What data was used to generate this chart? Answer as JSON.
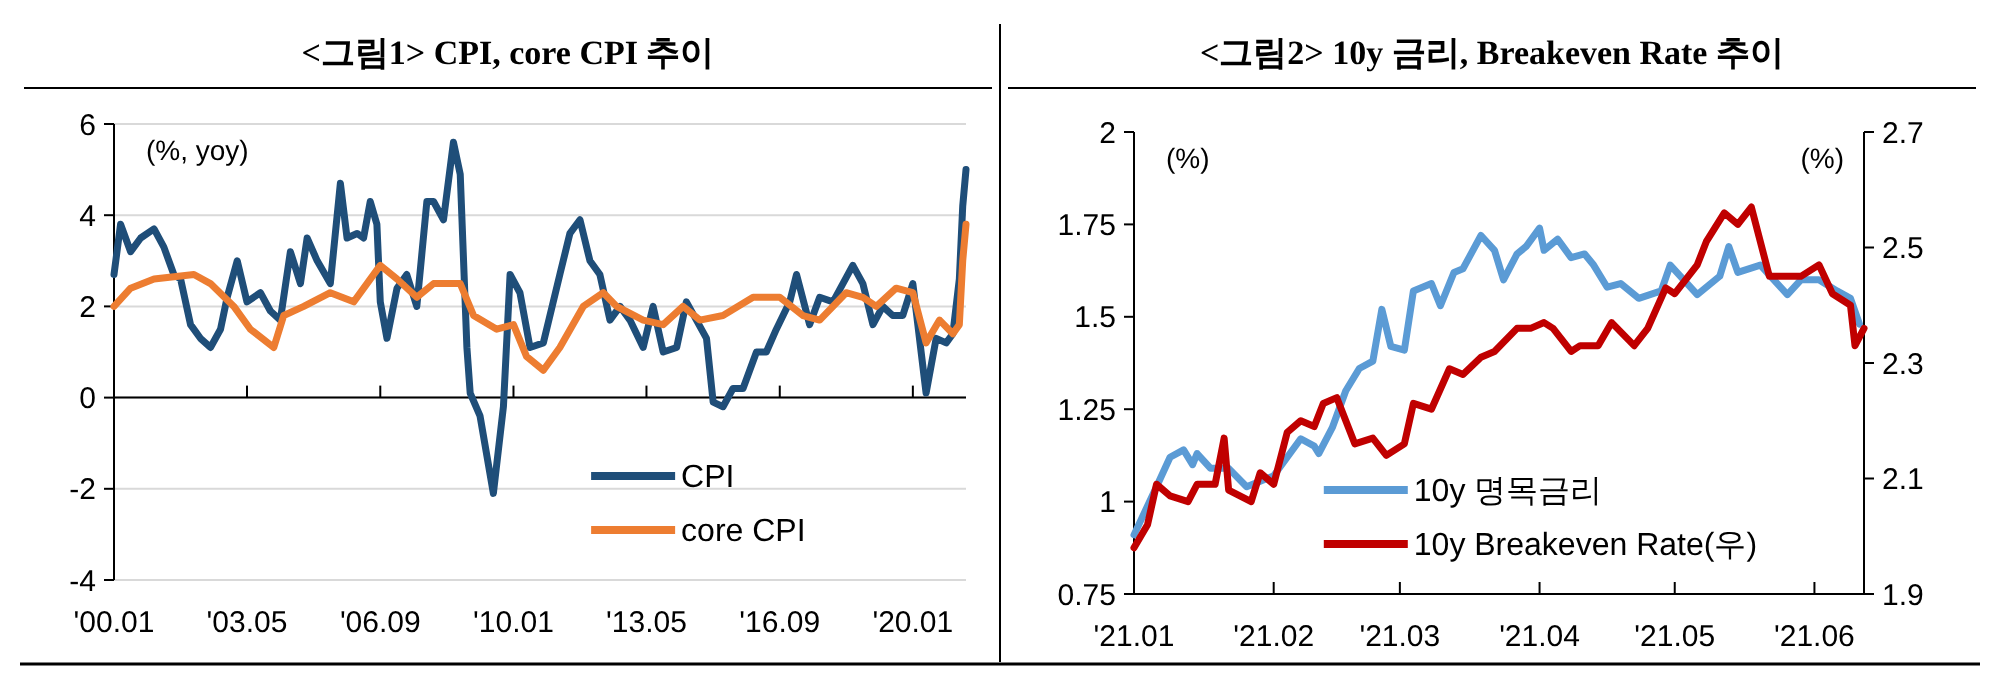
{
  "chart_data": [
    {
      "type": "line",
      "title": "<그림1> CPI, core CPI 추이",
      "ylabel": "(%, yoy)",
      "xlim": [
        "2000-01",
        "2021-05"
      ],
      "xticks": [
        {
          "value": "2000-01",
          "label": "'00.01"
        },
        {
          "value": "2003-05",
          "label": "'03.05"
        },
        {
          "value": "2006-09",
          "label": "'06.09"
        },
        {
          "value": "2010-01",
          "label": "'10.01"
        },
        {
          "value": "2013-05",
          "label": "'13.05"
        },
        {
          "value": "2016-09",
          "label": "'16.09"
        },
        {
          "value": "2020-01",
          "label": "'20.01"
        }
      ],
      "ylim": [
        -4,
        6
      ],
      "yticks": [
        -4,
        -2,
        0,
        2,
        4,
        6
      ],
      "grid": "y",
      "legend": "bottom right",
      "series": [
        {
          "name": "CPI",
          "color": "#1f4e79",
          "x": [
            "2000-01",
            "2000-03",
            "2000-06",
            "2000-09",
            "2001-01",
            "2001-04",
            "2001-07",
            "2001-09",
            "2001-12",
            "2002-03",
            "2002-06",
            "2002-09",
            "2002-11",
            "2003-02",
            "2003-05",
            "2003-09",
            "2003-12",
            "2004-03",
            "2004-06",
            "2004-09",
            "2004-11",
            "2005-02",
            "2005-06",
            "2005-09",
            "2005-11",
            "2006-02",
            "2006-04",
            "2006-06",
            "2006-08",
            "2006-09",
            "2006-11",
            "2007-02",
            "2007-05",
            "2007-08",
            "2007-11",
            "2008-01",
            "2008-04",
            "2008-07",
            "2008-09",
            "2008-11",
            "2008-12",
            "2009-03",
            "2009-07",
            "2009-10",
            "2009-12",
            "2010-03",
            "2010-06",
            "2010-10",
            "2011-03",
            "2011-06",
            "2011-09",
            "2011-12",
            "2012-03",
            "2012-06",
            "2012-09",
            "2012-12",
            "2013-04",
            "2013-07",
            "2013-10",
            "2014-02",
            "2014-05",
            "2014-08",
            "2014-11",
            "2015-01",
            "2015-04",
            "2015-07",
            "2015-10",
            "2016-02",
            "2016-05",
            "2016-08",
            "2016-12",
            "2017-02",
            "2017-06",
            "2017-09",
            "2018-01",
            "2018-07",
            "2018-10",
            "2019-01",
            "2019-04",
            "2019-07",
            "2019-10",
            "2020-01",
            "2020-05",
            "2020-08",
            "2020-11",
            "2021-01",
            "2021-03",
            "2021-04",
            "2021-05"
          ],
          "values": [
            2.7,
            3.8,
            3.2,
            3.5,
            3.7,
            3.3,
            2.7,
            2.6,
            1.6,
            1.3,
            1.1,
            1.5,
            2.2,
            3.0,
            2.1,
            2.3,
            1.9,
            1.7,
            3.2,
            2.5,
            3.5,
            3.0,
            2.5,
            4.7,
            3.5,
            3.6,
            3.5,
            4.3,
            3.8,
            2.1,
            1.3,
            2.4,
            2.7,
            2.0,
            4.3,
            4.3,
            3.9,
            5.6,
            4.9,
            1.1,
            0.1,
            -0.4,
            -2.1,
            -0.2,
            2.7,
            2.3,
            1.1,
            1.2,
            2.7,
            3.6,
            3.9,
            3.0,
            2.7,
            1.7,
            2.0,
            1.7,
            1.1,
            2.0,
            1.0,
            1.1,
            2.1,
            1.7,
            1.3,
            -0.1,
            -0.2,
            0.2,
            0.2,
            1.0,
            1.0,
            1.5,
            2.1,
            2.7,
            1.6,
            2.2,
            2.1,
            2.9,
            2.5,
            1.6,
            2.0,
            1.8,
            1.8,
            2.5,
            0.1,
            1.3,
            1.2,
            1.4,
            2.6,
            4.2,
            5.0
          ]
        },
        {
          "name": "core CPI",
          "color": "#ed7d31",
          "x": [
            "2000-01",
            "2000-06",
            "2001-01",
            "2002-01",
            "2002-06",
            "2003-01",
            "2003-06",
            "2004-01",
            "2004-04",
            "2004-10",
            "2005-06",
            "2006-01",
            "2006-09",
            "2007-02",
            "2007-08",
            "2008-01",
            "2008-09",
            "2009-01",
            "2009-08",
            "2010-01",
            "2010-05",
            "2010-10",
            "2011-03",
            "2011-10",
            "2012-04",
            "2012-08",
            "2013-04",
            "2013-10",
            "2014-04",
            "2014-09",
            "2015-04",
            "2016-01",
            "2016-09",
            "2017-04",
            "2017-09",
            "2018-05",
            "2018-10",
            "2019-02",
            "2019-08",
            "2020-01",
            "2020-05",
            "2020-09",
            "2021-01",
            "2021-03",
            "2021-04",
            "2021-05"
          ],
          "values": [
            2.0,
            2.4,
            2.6,
            2.7,
            2.5,
            2.0,
            1.5,
            1.1,
            1.8,
            2.0,
            2.3,
            2.1,
            2.9,
            2.6,
            2.2,
            2.5,
            2.5,
            1.8,
            1.5,
            1.6,
            0.9,
            0.6,
            1.1,
            2.0,
            2.3,
            2.0,
            1.7,
            1.6,
            2.0,
            1.7,
            1.8,
            2.2,
            2.2,
            1.8,
            1.7,
            2.3,
            2.2,
            2.0,
            2.4,
            2.3,
            1.2,
            1.7,
            1.4,
            1.6,
            3.0,
            3.8
          ]
        }
      ]
    },
    {
      "type": "line",
      "title": "<그림2> 10y 금리, Breakeven Rate 추이",
      "ylabel": "(%)",
      "y2label": "(%)",
      "xlim": [
        "2021-01-01",
        "2021-06-12"
      ],
      "xticks": [
        {
          "value": "2021-01-01",
          "label": "'21.01"
        },
        {
          "value": "2021-02-01",
          "label": "'21.02"
        },
        {
          "value": "2021-03-01",
          "label": "'21.03"
        },
        {
          "value": "2021-04-01",
          "label": "'21.04"
        },
        {
          "value": "2021-05-01",
          "label": "'21.05"
        },
        {
          "value": "2021-06-01",
          "label": "'21.06"
        }
      ],
      "ylim": [
        0.75,
        2
      ],
      "yticks": [
        0.75,
        1,
        1.25,
        1.5,
        1.75,
        2
      ],
      "y2lim": [
        1.9,
        2.7
      ],
      "y2ticks": [
        1.9,
        2.1,
        2.3,
        2.5,
        2.7
      ],
      "legend": "bottom",
      "series": [
        {
          "name": "10y 명목금리",
          "color": "#5b9bd5",
          "x": [
            "2021-01-01",
            "2021-01-06",
            "2021-01-09",
            "2021-01-12",
            "2021-01-14",
            "2021-01-15",
            "2021-01-18",
            "2021-01-22",
            "2021-01-26",
            "2021-02-01",
            "2021-02-04",
            "2021-02-07",
            "2021-02-10",
            "2021-02-11",
            "2021-02-14",
            "2021-02-17",
            "2021-02-20",
            "2021-02-23",
            "2021-02-25",
            "2021-02-27",
            "2021-03-02",
            "2021-03-04",
            "2021-03-08",
            "2021-03-10",
            "2021-03-13",
            "2021-03-15",
            "2021-03-19",
            "2021-03-22",
            "2021-03-24",
            "2021-03-27",
            "2021-03-29",
            "2021-04-01",
            "2021-04-02",
            "2021-04-05",
            "2021-04-08",
            "2021-04-11",
            "2021-04-13",
            "2021-04-16",
            "2021-04-19",
            "2021-04-23",
            "2021-04-28",
            "2021-04-30",
            "2021-05-03",
            "2021-05-06",
            "2021-05-11",
            "2021-05-13",
            "2021-05-15",
            "2021-05-20",
            "2021-05-23",
            "2021-05-26",
            "2021-05-29",
            "2021-06-02",
            "2021-06-06",
            "2021-06-09",
            "2021-06-11"
          ],
          "values": [
            0.91,
            1.04,
            1.12,
            1.14,
            1.1,
            1.13,
            1.09,
            1.09,
            1.04,
            1.07,
            1.12,
            1.17,
            1.15,
            1.13,
            1.2,
            1.3,
            1.36,
            1.38,
            1.52,
            1.42,
            1.41,
            1.57,
            1.59,
            1.53,
            1.62,
            1.63,
            1.72,
            1.68,
            1.6,
            1.67,
            1.69,
            1.74,
            1.68,
            1.71,
            1.66,
            1.67,
            1.64,
            1.58,
            1.59,
            1.55,
            1.57,
            1.64,
            1.6,
            1.56,
            1.61,
            1.69,
            1.62,
            1.64,
            1.6,
            1.56,
            1.6,
            1.6,
            1.57,
            1.55,
            1.48
          ]
        },
        {
          "name": "10y Breakeven Rate(우)",
          "color": "#c00000",
          "axis": "y2",
          "x": [
            "2021-01-01",
            "2021-01-04",
            "2021-01-06",
            "2021-01-09",
            "2021-01-13",
            "2021-01-15",
            "2021-01-19",
            "2021-01-21",
            "2021-01-22",
            "2021-01-27",
            "2021-01-29",
            "2021-02-01",
            "2021-02-04",
            "2021-02-07",
            "2021-02-10",
            "2021-02-12",
            "2021-02-15",
            "2021-02-19",
            "2021-02-23",
            "2021-02-26",
            "2021-03-02",
            "2021-03-04",
            "2021-03-08",
            "2021-03-12",
            "2021-03-15",
            "2021-03-19",
            "2021-03-22",
            "2021-03-27",
            "2021-03-30",
            "2021-04-02",
            "2021-04-04",
            "2021-04-08",
            "2021-04-10",
            "2021-04-14",
            "2021-04-17",
            "2021-04-22",
            "2021-04-25",
            "2021-04-29",
            "2021-05-01",
            "2021-05-06",
            "2021-05-08",
            "2021-05-12",
            "2021-05-15",
            "2021-05-18",
            "2021-05-22",
            "2021-05-26",
            "2021-05-29",
            "2021-06-02",
            "2021-06-05",
            "2021-06-09",
            "2021-06-10",
            "2021-06-12"
          ],
          "values": [
            1.98,
            2.02,
            2.09,
            2.07,
            2.06,
            2.09,
            2.09,
            2.17,
            2.08,
            2.06,
            2.11,
            2.09,
            2.18,
            2.2,
            2.19,
            2.23,
            2.24,
            2.16,
            2.17,
            2.14,
            2.16,
            2.23,
            2.22,
            2.29,
            2.28,
            2.31,
            2.32,
            2.36,
            2.36,
            2.37,
            2.36,
            2.32,
            2.33,
            2.33,
            2.37,
            2.33,
            2.36,
            2.43,
            2.42,
            2.47,
            2.51,
            2.56,
            2.54,
            2.57,
            2.45,
            2.45,
            2.45,
            2.47,
            2.42,
            2.4,
            2.33,
            2.36
          ]
        }
      ]
    }
  ]
}
